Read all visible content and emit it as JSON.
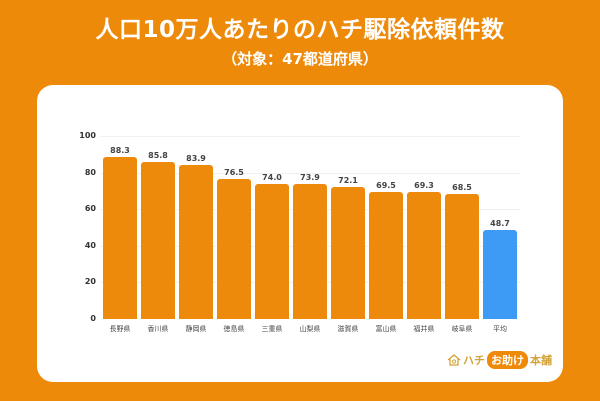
{
  "header": {
    "title": "人口10万人あたりのハチ駆除依頼件数",
    "subtitle": "（対象：47都道府県）"
  },
  "colors": {
    "background": "#ED8A0A",
    "bar_primary": "#EE8A0B",
    "bar_average": "#3D9BF5",
    "card": "#FFFFFF"
  },
  "chart_data": {
    "type": "bar",
    "title": "人口10万人あたりのハチ駆除依頼件数",
    "subtitle": "（対象：47都道府県）",
    "xlabel": "",
    "ylabel": "",
    "ylim": [
      0,
      100
    ],
    "yticks": [
      0,
      20,
      40,
      60,
      80,
      100
    ],
    "grid": true,
    "legend": null,
    "categories": [
      "長野県",
      "香川県",
      "静岡県",
      "徳島県",
      "三重県",
      "山梨県",
      "滋賀県",
      "富山県",
      "福井県",
      "岐阜県",
      "平均"
    ],
    "values": [
      88.3,
      85.8,
      83.9,
      76.5,
      74.0,
      73.9,
      72.1,
      69.5,
      69.3,
      68.5,
      48.7
    ],
    "value_labels": [
      "88.3",
      "85.8",
      "83.9",
      "76.5",
      "74.0",
      "73.9",
      "72.1",
      "69.5",
      "69.3",
      "68.5",
      "48.7"
    ],
    "highlight_index": 10
  },
  "logo": {
    "part1": "ハチ",
    "part2": "お助け",
    "part3": "本舗"
  }
}
